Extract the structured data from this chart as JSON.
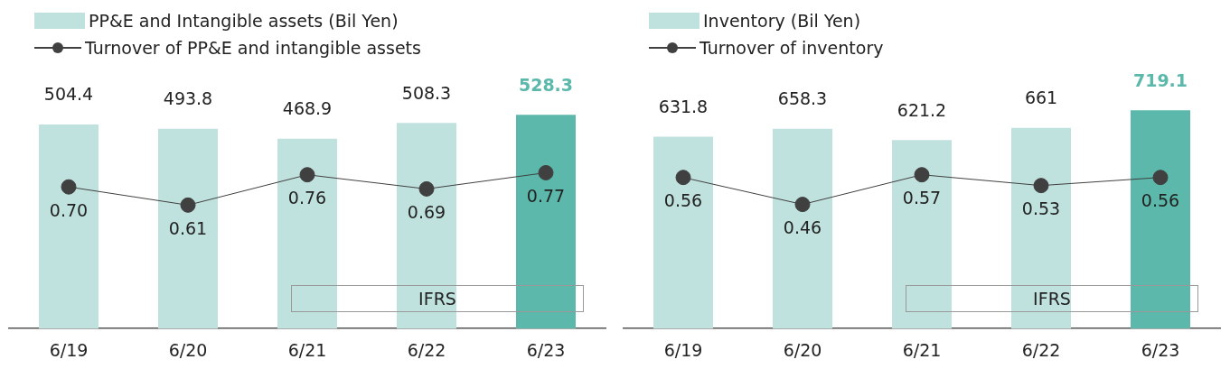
{
  "chart_data": [
    {
      "type": "bar",
      "categories": [
        "6/19",
        "6/20",
        "6/21",
        "6/22",
        "6/23"
      ],
      "tick_labels": "x",
      "grid": false,
      "legend": "top left",
      "data_labels": true,
      "marker": "circle",
      "annotations": [
        "IFRS"
      ],
      "series": [
        {
          "name": "PP&E and Intangible assets (Bil Yen)",
          "type": "bar",
          "color": "#c0e2de",
          "colors": [
            "#c0e2de",
            "#c0e2de",
            "#c0e2de",
            "#c0e2de",
            "#5bb8ab"
          ],
          "values": [
            504.4,
            493.8,
            468.9,
            508.3,
            528.3
          ]
        },
        {
          "name": "Turnover of PP&E and intangible assets",
          "type": "line",
          "axis": "y2",
          "color": "#404040",
          "values": [
            0.7,
            0.61,
            0.76,
            0.69,
            0.77
          ],
          "value_labels": [
            "0.70",
            "0.61",
            "0.76",
            "0.69",
            "0.77"
          ]
        }
      ]
    },
    {
      "type": "bar",
      "categories": [
        "6/19",
        "6/20",
        "6/21",
        "6/22",
        "6/23"
      ],
      "tick_labels": "x",
      "grid": false,
      "legend": "top left",
      "data_labels": true,
      "marker": "circle",
      "annotations": [
        "IFRS"
      ],
      "series": [
        {
          "name": "Inventory (Bil Yen)",
          "type": "bar",
          "color": "#c0e2de",
          "colors": [
            "#c0e2de",
            "#c0e2de",
            "#c0e2de",
            "#c0e2de",
            "#5bb8ab"
          ],
          "values": [
            631.8,
            658.3,
            621.2,
            661,
            719.1
          ]
        },
        {
          "name": "Turnover of inventory",
          "type": "line",
          "axis": "y2",
          "color": "#404040",
          "values": [
            0.56,
            0.46,
            0.57,
            0.53,
            0.56
          ],
          "value_labels": [
            "0.56",
            "0.46",
            "0.57",
            "0.53",
            "0.56"
          ]
        }
      ]
    }
  ]
}
